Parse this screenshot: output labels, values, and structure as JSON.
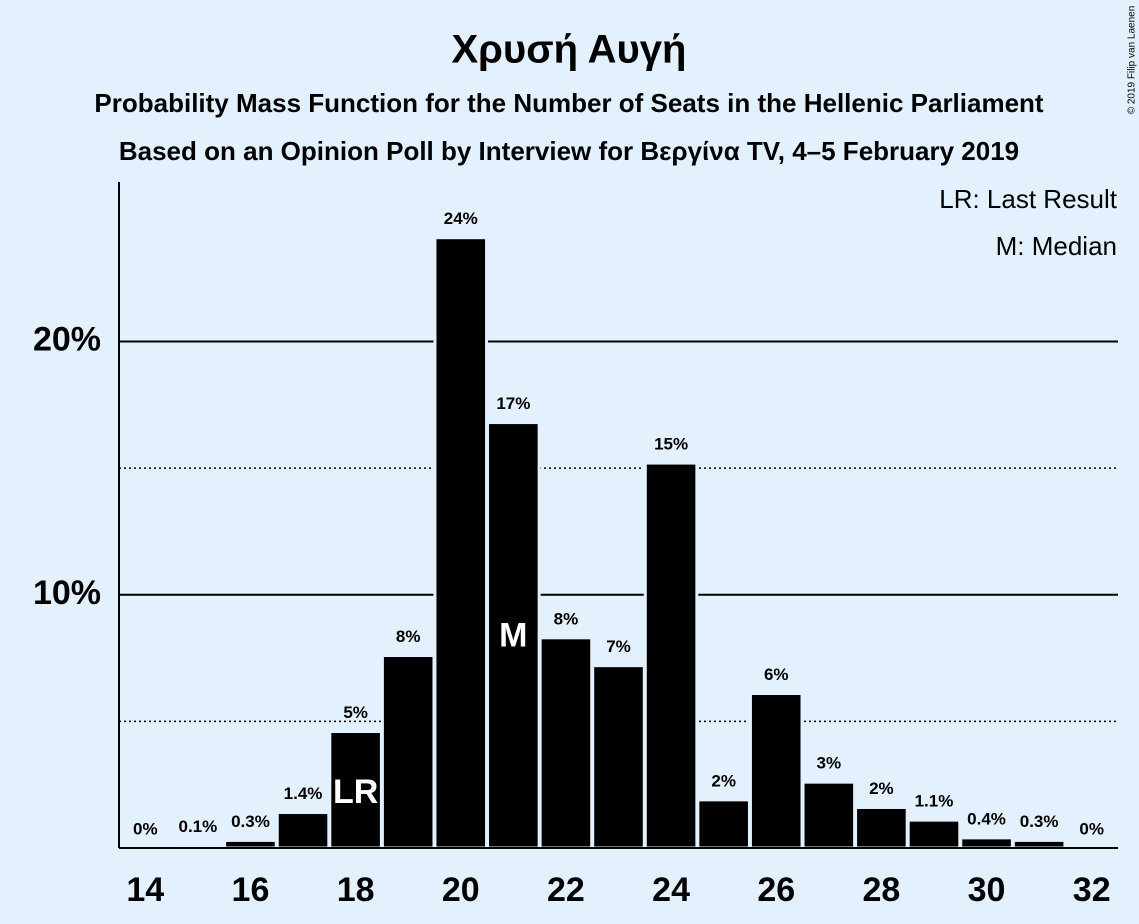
{
  "chart_data": {
    "type": "bar",
    "title": "Χρυσή Αυγή",
    "subtitle": "Probability Mass Function for the Number of Seats in the Hellenic Parliament",
    "subtitle2": "Based on an Opinion Poll by Interview for Βεργίνα TV, 4–5 February 2019",
    "copyright": "© 2019 Filip van Laenen",
    "legend": [
      "LR: Last Result",
      "M: Median"
    ],
    "x": [
      14,
      15,
      16,
      17,
      18,
      19,
      20,
      21,
      22,
      23,
      24,
      25,
      26,
      27,
      28,
      29,
      30,
      31,
      32
    ],
    "values": [
      0,
      0.1,
      0.3,
      1.4,
      4.6,
      7.6,
      24.1,
      16.8,
      8.3,
      7.2,
      15.2,
      1.9,
      6.1,
      2.6,
      1.6,
      1.1,
      0.4,
      0.3,
      0
    ],
    "value_labels": [
      "0%",
      "0.1%",
      "0.3%",
      "1.4%",
      "5%",
      "8%",
      "24%",
      "17%",
      "8%",
      "7%",
      "15%",
      "2%",
      "6%",
      "3%",
      "2%",
      "1.1%",
      "0.4%",
      "0.3%",
      "0%"
    ],
    "color": "#000000",
    "xlim": [
      13.5,
      32.5
    ],
    "xticks": [
      14,
      16,
      18,
      20,
      22,
      24,
      26,
      28,
      30,
      32
    ],
    "ylim": [
      0,
      26.3
    ],
    "yticks": [
      {
        "value": 10,
        "label": "10%"
      },
      {
        "value": 20,
        "label": "20%"
      }
    ],
    "minor_yticks": [
      5,
      15
    ],
    "grid": true,
    "markers": [
      {
        "x": 18,
        "label": "LR"
      },
      {
        "x": 21,
        "label": "M"
      }
    ]
  }
}
